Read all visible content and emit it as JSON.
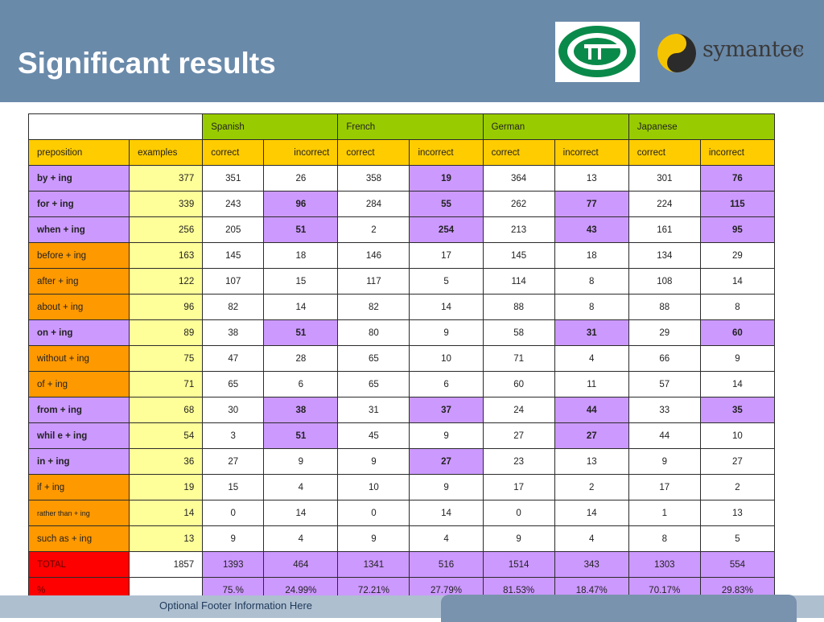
{
  "slide": {
    "title": "Significant results",
    "footer": "Optional Footer Information Here"
  },
  "logos": {
    "symantec_word": "symantec",
    "symantec_tm": "TM"
  },
  "table": {
    "languages": [
      "Spanish",
      "French",
      "German",
      "Japanese"
    ],
    "headers": {
      "preposition": "preposition",
      "examples": "examples",
      "correct": "correct",
      "incorrect": "incorrect"
    },
    "rows": [
      {
        "label": "by + ing",
        "examples": "377",
        "values": [
          "351",
          "26",
          "358",
          "19",
          "364",
          "13",
          "301",
          "76"
        ]
      },
      {
        "label": "for + ing",
        "examples": "339",
        "values": [
          "243",
          "96",
          "284",
          "55",
          "262",
          "77",
          "224",
          "115"
        ]
      },
      {
        "label": "when + ing",
        "examples": "256",
        "values": [
          "205",
          "51",
          "2",
          "254",
          "213",
          "43",
          "161",
          "95"
        ]
      },
      {
        "label": "before + ing",
        "examples": "163",
        "values": [
          "145",
          "18",
          "146",
          "17",
          "145",
          "18",
          "134",
          "29"
        ]
      },
      {
        "label": "after + ing",
        "examples": "122",
        "values": [
          "107",
          "15",
          "117",
          "5",
          "114",
          "8",
          "108",
          "14"
        ]
      },
      {
        "label": "about + ing",
        "examples": "96",
        "values": [
          "82",
          "14",
          "82",
          "14",
          "88",
          "8",
          "88",
          "8"
        ]
      },
      {
        "label": "on + ing",
        "examples": "89",
        "values": [
          "38",
          "51",
          "80",
          "9",
          "58",
          "31",
          "29",
          "60"
        ]
      },
      {
        "label": "without + ing",
        "examples": "75",
        "values": [
          "47",
          "28",
          "65",
          "10",
          "71",
          "4",
          "66",
          "9"
        ]
      },
      {
        "label": "of + ing",
        "examples": "71",
        "values": [
          "65",
          "6",
          "65",
          "6",
          "60",
          "11",
          "57",
          "14"
        ]
      },
      {
        "label": "from + ing",
        "examples": "68",
        "values": [
          "30",
          "38",
          "31",
          "37",
          "24",
          "44",
          "33",
          "35"
        ]
      },
      {
        "label": "whil e + ing",
        "examples": "54",
        "values": [
          "3",
          "51",
          "45",
          "9",
          "27",
          "27",
          "44",
          "10"
        ]
      },
      {
        "label": "in + ing",
        "examples": "36",
        "values": [
          "27",
          "9",
          "9",
          "27",
          "23",
          "13",
          "9",
          "27"
        ]
      },
      {
        "label": "if + ing",
        "examples": "19",
        "values": [
          "15",
          "4",
          "10",
          "9",
          "17",
          "2",
          "17",
          "2"
        ]
      },
      {
        "label": "rather than + ing",
        "examples": "14",
        "values": [
          "0",
          "14",
          "0",
          "14",
          "0",
          "14",
          "1",
          "13"
        ]
      },
      {
        "label": "such as + ing",
        "examples": "13",
        "values": [
          "9",
          "4",
          "9",
          "4",
          "9",
          "4",
          "8",
          "5"
        ]
      }
    ],
    "total": {
      "label": "TOTAL",
      "examples": "1857",
      "values": [
        "1393",
        "464",
        "1341",
        "516",
        "1514",
        "343",
        "1303",
        "554"
      ]
    },
    "percent": {
      "label": "%",
      "examples": "",
      "values": [
        "75.%",
        "24.99%",
        "72.21%",
        "27.79%",
        "81.53%",
        "18.47%",
        "70.17%",
        "29.83%"
      ]
    }
  }
}
